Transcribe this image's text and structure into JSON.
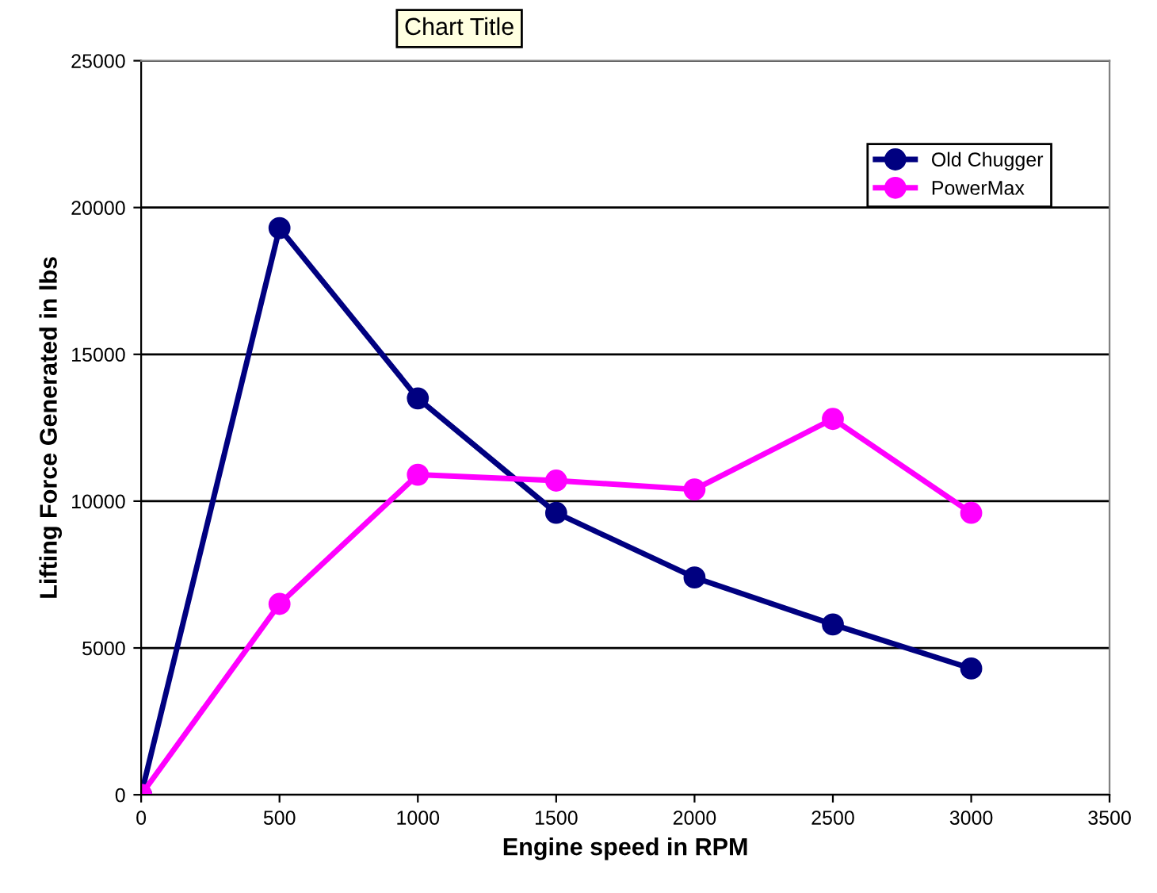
{
  "chart_data": {
    "type": "line",
    "title": "Chart Title",
    "xlabel": "Engine speed in RPM",
    "ylabel": "Lifting Force Generated in lbs",
    "x": [
      0,
      500,
      1000,
      1500,
      2000,
      2500,
      3000
    ],
    "series": [
      {
        "name": "Old Chugger",
        "color": "#000080",
        "values": [
          0,
          19300,
          13500,
          9600,
          7400,
          5800,
          4300
        ]
      },
      {
        "name": "PowerMax",
        "color": "#ff00ff",
        "values": [
          0,
          6500,
          10900,
          10700,
          10400,
          12800,
          9600
        ]
      }
    ],
    "xlim": [
      0,
      3500
    ],
    "xticks": [
      0,
      500,
      1000,
      1500,
      2000,
      2500,
      3000,
      3500
    ],
    "ylim": [
      0,
      25000
    ],
    "yticks": [
      0,
      5000,
      10000,
      15000,
      20000,
      25000
    ],
    "grid": "y",
    "legend": "top right",
    "marker": "circle",
    "line_style": "solid"
  }
}
